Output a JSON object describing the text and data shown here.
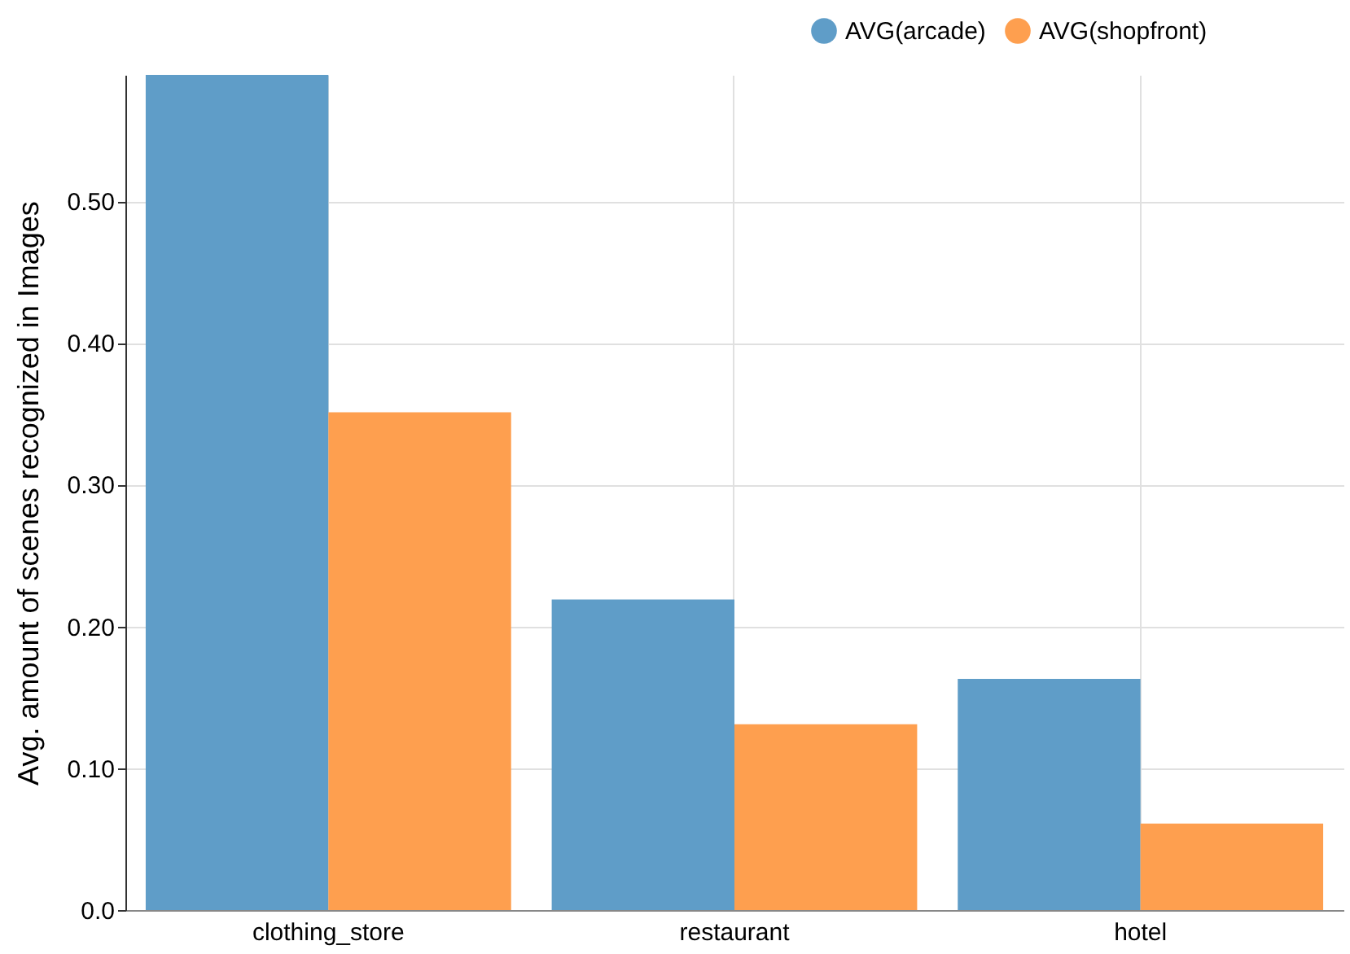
{
  "chart_data": {
    "type": "bar",
    "ylabel": "Avg. amount of scenes recognized in Images",
    "categories": [
      "clothing_store",
      "restaurant",
      "hotel"
    ],
    "series": [
      {
        "name": "AVG(arcade)",
        "color": "#5f9dc8",
        "values": [
          0.589,
          0.219,
          0.163
        ]
      },
      {
        "name": "AVG(shopfront)",
        "color": "#fe9f4f",
        "values": [
          0.351,
          0.131,
          0.061
        ]
      }
    ],
    "ylim": [
      0,
      0.589
    ],
    "yticks": [
      {
        "value": 0,
        "label": "0.0"
      },
      {
        "value": 0.1,
        "label": "0.10"
      },
      {
        "value": 0.2,
        "label": "0.20"
      },
      {
        "value": 0.3,
        "label": "0.30"
      },
      {
        "value": 0.4,
        "label": "0.40"
      },
      {
        "value": 0.5,
        "label": "0.50"
      }
    ],
    "grid": true,
    "legend": "top right"
  }
}
